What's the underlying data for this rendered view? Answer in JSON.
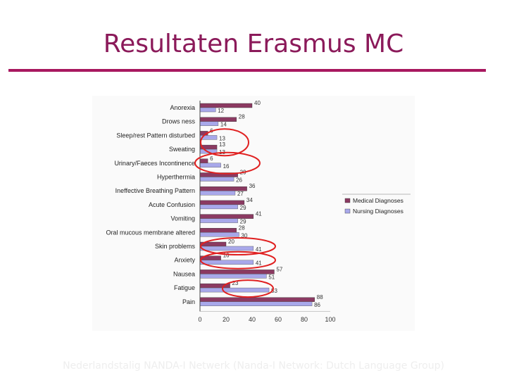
{
  "slide": {
    "title": "Resultaten Erasmus MC",
    "footer": "Nederlandstalig NANDA-I Netwerk (Nanda-I Network: Dutch Language Group)",
    "accent_color": "#a8185f"
  },
  "chart_data": {
    "type": "bar",
    "orientation": "horizontal",
    "categories": [
      "Anorexia",
      "Drows ness",
      "Sleep/rest Pattern disturbed",
      "Sweating",
      "Urinary/Faeces Incontinence",
      "Hyperthermia",
      "Ineffective Breathing Pattern",
      "Acute Confusion",
      "Vomiting",
      "Oral mucous membrane altered",
      "Skin problems",
      "Anxiety",
      "Nausea",
      "Fatigue",
      "Pain"
    ],
    "series": [
      {
        "name": "Medical Diagnoses",
        "color": "#8b3a62",
        "values": [
          40,
          28,
          6,
          13,
          6,
          29,
          36,
          34,
          41,
          28,
          20,
          16,
          57,
          23,
          88
        ]
      },
      {
        "name": "Nursing Diagnoses",
        "color": "#a8a8ea",
        "values": [
          12,
          14,
          13,
          13,
          16,
          26,
          27,
          29,
          29,
          30,
          41,
          41,
          51,
          53,
          86
        ]
      }
    ],
    "data_labels": {
      "medical": [
        "40",
        "28",
        "6",
        "13",
        "6",
        "29",
        "36",
        "34",
        "41",
        "28",
        "20",
        "16",
        "57",
        "23",
        "88"
      ],
      "nursing": [
        "12",
        "14",
        "13",
        "13",
        "16",
        "26",
        "27",
        "29",
        "29",
        "30",
        "41",
        "41",
        "51",
        "53",
        "86"
      ]
    },
    "xticks": [
      "0",
      "20",
      "40",
      "60",
      "80",
      "100"
    ],
    "xlim": [
      0,
      100
    ],
    "legend_position": "right",
    "highlighted_categories": [
      "Sleep/rest Pattern disturbed",
      "Urinary/Faeces Incontinence",
      "Skin problems",
      "Anxiety",
      "Fatigue"
    ],
    "highlight_color": "#e02020"
  }
}
